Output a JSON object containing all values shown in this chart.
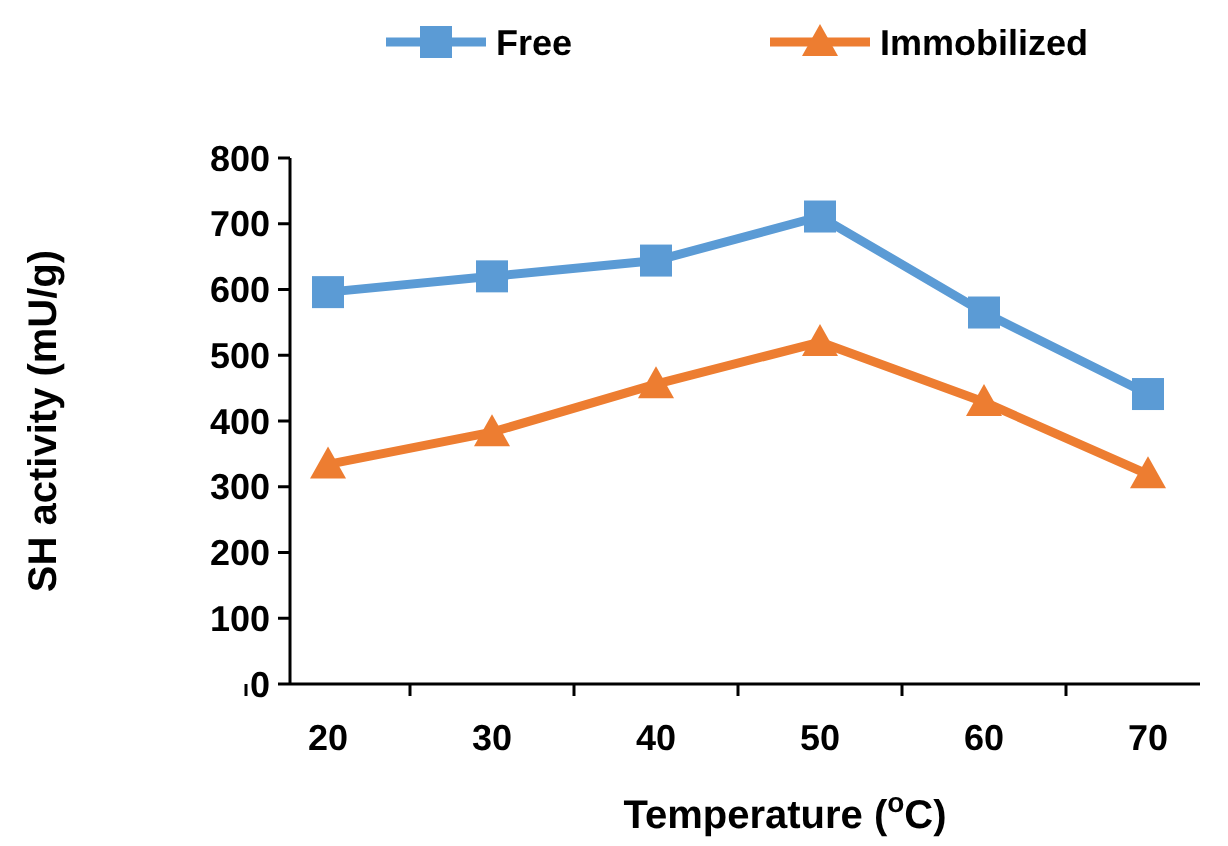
{
  "chart_data": {
    "type": "line",
    "xlabel": "Temperature ($^{o}$C)",
    "ylabel": "SH activity (mU/g)",
    "categories": [
      "20",
      "30",
      "40",
      "50",
      "60",
      "70"
    ],
    "series": [
      {
        "name": "Free",
        "color": "#5b9bd5",
        "marker": "square",
        "values": [
          596,
          620,
          644,
          711,
          565,
          441
        ]
      },
      {
        "name": "Immobilized",
        "color": "#ed7d31",
        "marker": "triangle",
        "values": [
          334,
          383,
          456,
          520,
          429,
          319
        ]
      }
    ],
    "ylim": [
      0,
      800
    ],
    "yticks": [
      0,
      100,
      200,
      300,
      400,
      500,
      600,
      700,
      800
    ],
    "grid": false,
    "legend": "top"
  }
}
